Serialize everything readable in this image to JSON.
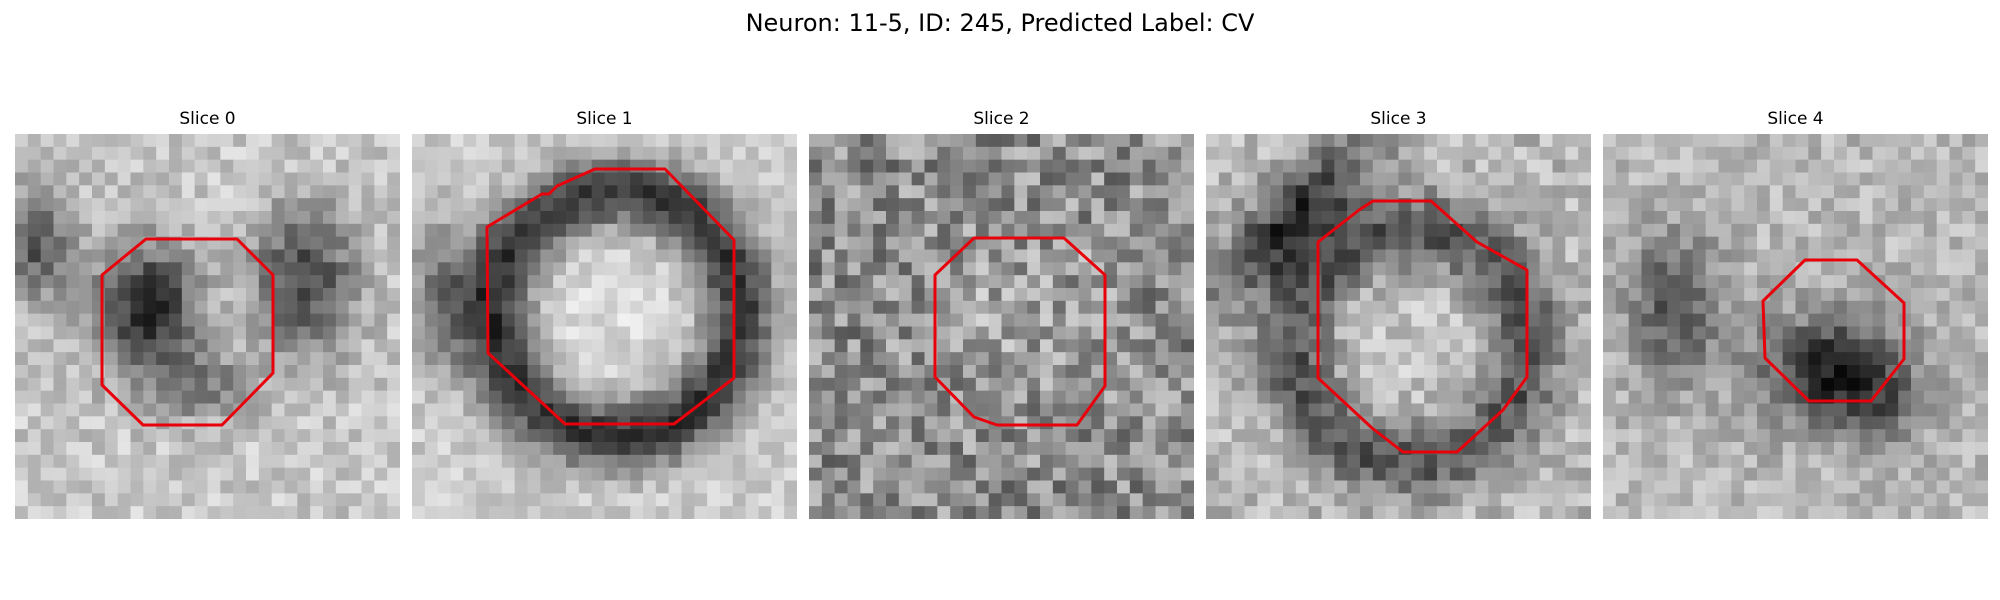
{
  "figure": {
    "title": "Neuron: 11-5, ID: 245, Predicted Label: CV",
    "outline_color": "#e8000b",
    "colormap": "grayscale"
  },
  "panels": [
    {
      "title": "Slice 0"
    },
    {
      "title": "Slice 1"
    },
    {
      "title": "Slice 2"
    },
    {
      "title": "Slice 3"
    },
    {
      "title": "Slice 4"
    }
  ]
}
